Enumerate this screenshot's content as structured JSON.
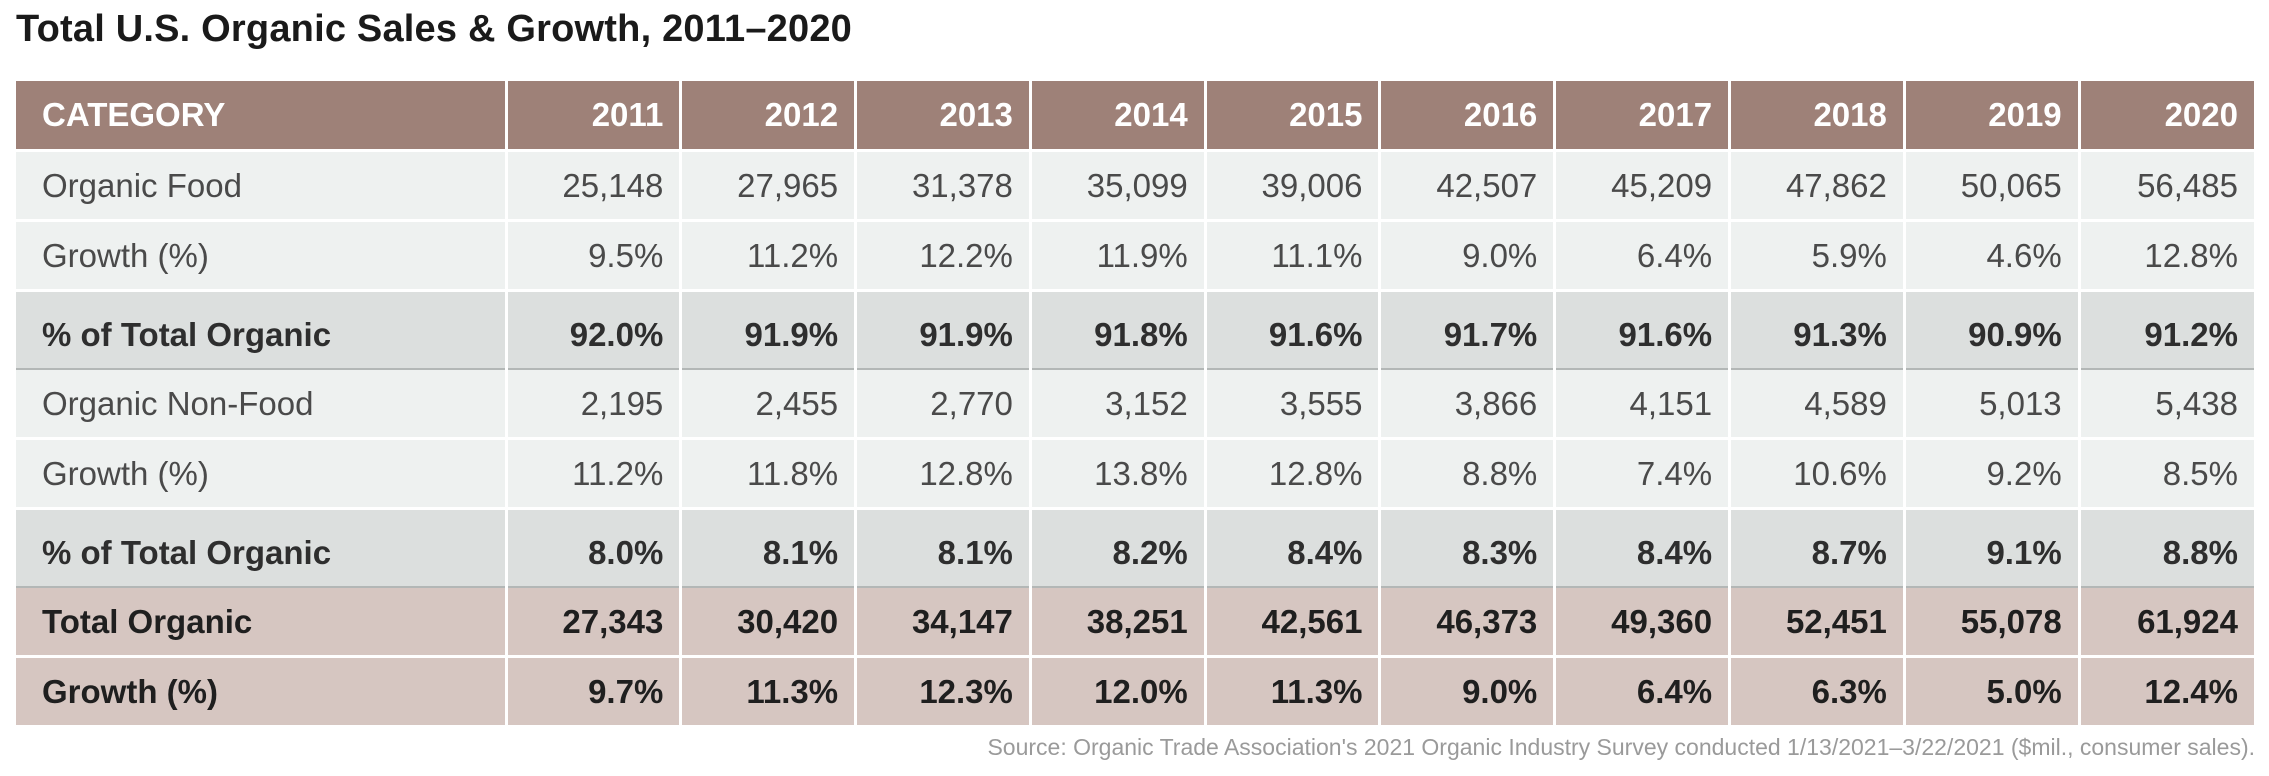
{
  "title": "Total U.S. Organic Sales & Growth, 2011–2020",
  "chart_data": {
    "type": "table",
    "title": "Total U.S. Organic Sales & Growth, 2011–2020",
    "columns": [
      "CATEGORY",
      "2011",
      "2012",
      "2013",
      "2014",
      "2015",
      "2016",
      "2017",
      "2018",
      "2019",
      "2020"
    ],
    "rows": [
      {
        "label": "Organic Food",
        "values": [
          "25,148",
          "27,965",
          "31,378",
          "35,099",
          "39,006",
          "42,507",
          "45,209",
          "47,862",
          "50,065",
          "56,485"
        ]
      },
      {
        "label": "Growth (%)",
        "values": [
          "9.5%",
          "11.2%",
          "12.2%",
          "11.9%",
          "11.1%",
          "9.0%",
          "6.4%",
          "5.9%",
          "4.6%",
          "12.8%"
        ]
      },
      {
        "label": "% of Total Organic",
        "values": [
          "92.0%",
          "91.9%",
          "91.9%",
          "91.8%",
          "91.6%",
          "91.7%",
          "91.6%",
          "91.3%",
          "90.9%",
          "91.2%"
        ]
      },
      {
        "label": "Organic Non-Food",
        "values": [
          "2,195",
          "2,455",
          "2,770",
          "3,152",
          "3,555",
          "3,866",
          "4,151",
          "4,589",
          "5,013",
          "5,438"
        ]
      },
      {
        "label": "Growth (%)",
        "values": [
          "11.2%",
          "11.8%",
          "12.8%",
          "13.8%",
          "12.8%",
          "8.8%",
          "7.4%",
          "10.6%",
          "9.2%",
          "8.5%"
        ]
      },
      {
        "label": "% of Total Organic",
        "values": [
          "8.0%",
          "8.1%",
          "8.1%",
          "8.2%",
          "8.4%",
          "8.3%",
          "8.4%",
          "8.7%",
          "9.1%",
          "8.8%"
        ]
      },
      {
        "label": "Total Organic",
        "values": [
          "27,343",
          "30,420",
          "34,147",
          "38,251",
          "42,561",
          "46,373",
          "49,360",
          "52,451",
          "55,078",
          "61,924"
        ]
      },
      {
        "label": "Growth (%)",
        "values": [
          "9.7%",
          "11.3%",
          "12.3%",
          "12.0%",
          "11.3%",
          "9.0%",
          "6.4%",
          "6.3%",
          "5.0%",
          "12.4%"
        ]
      }
    ]
  },
  "source": "Source: Organic Trade Association's 2021 Organic Industry Survey conducted 1/13/2021–3/22/2021 ($mil., consumer sales).",
  "colors": {
    "header_bg": "#9e8178",
    "light_row_bg": "#eef1f0",
    "share_row_bg": "#dcdfde",
    "total_row_bg": "#d6c6c1"
  }
}
